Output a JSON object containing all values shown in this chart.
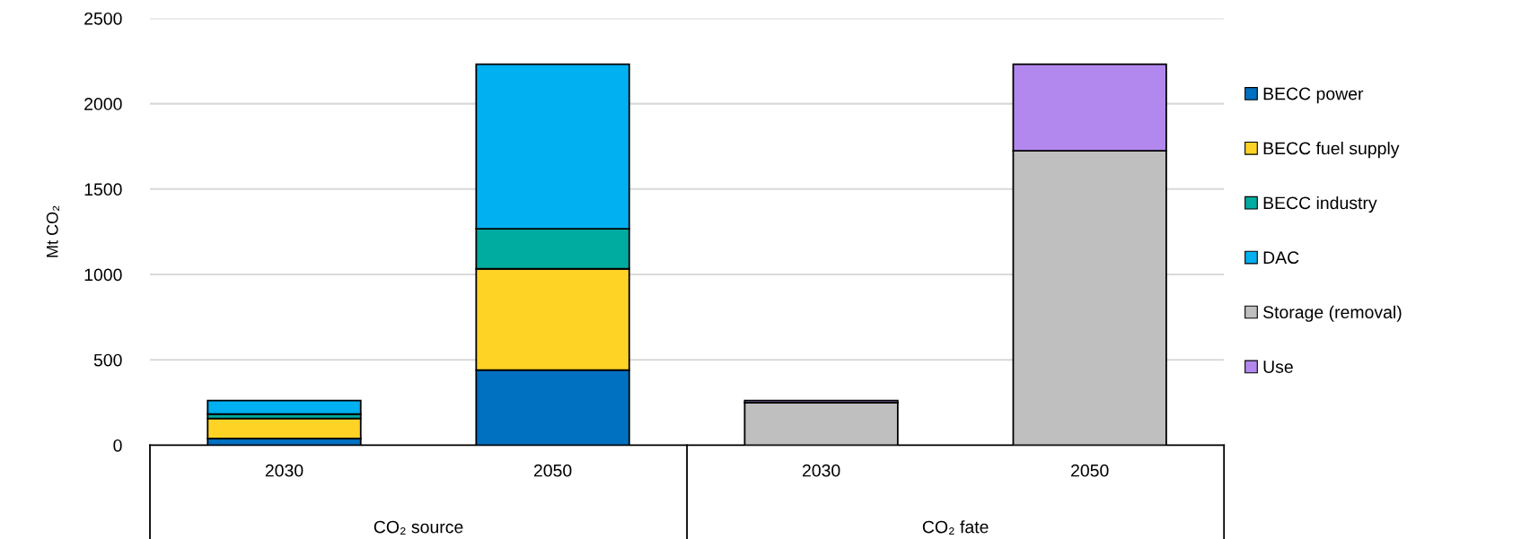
{
  "chart_data": {
    "type": "bar",
    "stacked": true,
    "ylabel": "Mt CO₂",
    "categories": [
      "2030",
      "2050",
      "2030",
      "2050"
    ],
    "series": [
      {
        "name": "BECC power",
        "color": "#0070c0",
        "values": [
          39,
          440,
          null,
          null
        ]
      },
      {
        "name": "BECC fuel supply",
        "color": "#ffd326",
        "values": [
          118,
          593,
          null,
          null
        ]
      },
      {
        "name": "BECC industry",
        "color": "#00aba0",
        "values": [
          25,
          234,
          null,
          null
        ]
      },
      {
        "name": "DAC",
        "color": "#00b0f0",
        "values": [
          80,
          964,
          null,
          null
        ]
      },
      {
        "name": "Storage (removal)",
        "color": "#bfbfbf",
        "values": [
          null,
          null,
          249,
          1724
        ]
      },
      {
        "name": "Use",
        "color": "#b388ee",
        "values": [
          null,
          null,
          13,
          507
        ]
      }
    ],
    "annotations": [
      "CO₂ source",
      "CO₂ fate"
    ],
    "ylim": [
      0,
      2500
    ],
    "yticks": [
      0,
      500,
      1000,
      1500,
      2000,
      2500
    ],
    "grid": "y",
    "legend": "right"
  }
}
